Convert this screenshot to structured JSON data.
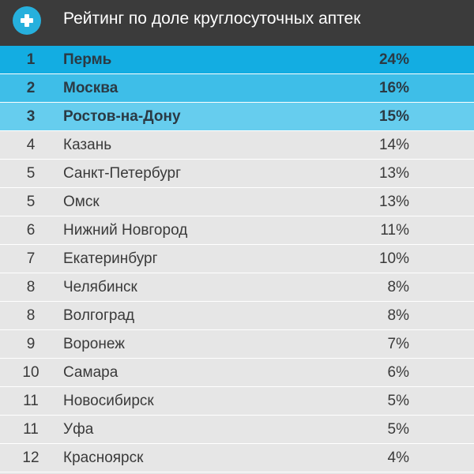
{
  "header": {
    "title": "Рейтинг по доле круглосуточных аптек",
    "icon": "plus-icon"
  },
  "colors": {
    "header_bg": "#3b3b3b",
    "icon_bg": "#26b0dd",
    "row_bg": "#e6e6e6",
    "top1_bg": "#13ade2",
    "top2_bg": "#3ebee8",
    "top3_bg": "#66cdee"
  },
  "chart_data": {
    "type": "table",
    "title": "Рейтинг по доле круглосуточных аптек",
    "columns": [
      "rank",
      "city",
      "share"
    ],
    "rows": [
      {
        "rank": "1",
        "city": "Пермь",
        "share": "24%",
        "value": 24
      },
      {
        "rank": "2",
        "city": "Москва",
        "share": "16%",
        "value": 16
      },
      {
        "rank": "3",
        "city": "Ростов-на-Дону",
        "share": "15%",
        "value": 15
      },
      {
        "rank": "4",
        "city": "Казань",
        "share": "14%",
        "value": 14
      },
      {
        "rank": "5",
        "city": "Санкт-Петербург",
        "share": "13%",
        "value": 13
      },
      {
        "rank": "5",
        "city": "Омск",
        "share": "13%",
        "value": 13
      },
      {
        "rank": "6",
        "city": "Нижний Новгород",
        "share": "11%",
        "value": 11
      },
      {
        "rank": "7",
        "city": "Екатеринбург",
        "share": "10%",
        "value": 10
      },
      {
        "rank": "8",
        "city": "Челябинск",
        "share": "8%",
        "value": 8
      },
      {
        "rank": "8",
        "city": "Волгоград",
        "share": "8%",
        "value": 8
      },
      {
        "rank": "9",
        "city": "Воронеж",
        "share": "7%",
        "value": 7
      },
      {
        "rank": "10",
        "city": "Самара",
        "share": "6%",
        "value": 6
      },
      {
        "rank": "11",
        "city": "Новосибирск",
        "share": "5%",
        "value": 5
      },
      {
        "rank": "11",
        "city": "Уфа",
        "share": "5%",
        "value": 5
      },
      {
        "rank": "12",
        "city": "Красноярск",
        "share": "4%",
        "value": 4
      }
    ]
  }
}
